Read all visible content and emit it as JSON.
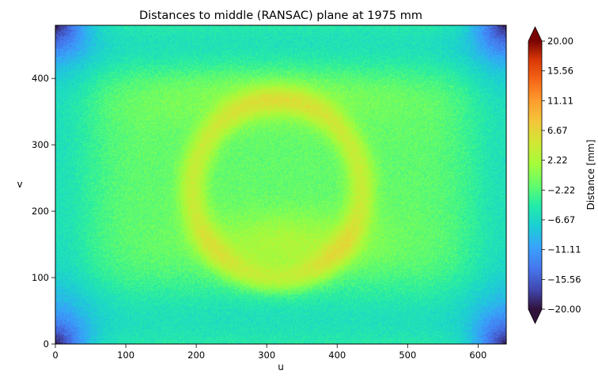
{
  "chart_data": {
    "type": "heatmap",
    "title": "Distances to middle (RANSAC) plane at 1975 mm",
    "xlabel": "u",
    "ylabel": "v",
    "xlim": [
      0,
      640
    ],
    "ylim": [
      0,
      480
    ],
    "x_ticks": [
      0,
      100,
      200,
      300,
      400,
      500,
      600
    ],
    "y_ticks": [
      0,
      100,
      200,
      300,
      400
    ],
    "colorbar": {
      "label": "Distance [mm]",
      "min": -20,
      "max": 20,
      "extend": "both",
      "colormap": "turbo",
      "ticks": [
        "20.00",
        "15.56",
        "11.11",
        "6.67",
        "2.22",
        "−2.22",
        "−6.67",
        "−11.11",
        "−15.56",
        "−20.00"
      ]
    },
    "field": {
      "base_value": -1.5,
      "features": [
        {
          "kind": "ring",
          "cx": 315,
          "cy": 232,
          "rx": 120,
          "ry": 135,
          "width": 14,
          "value": 5.5
        },
        {
          "kind": "blob",
          "cx": 330,
          "cy": 150,
          "rx": 120,
          "ry": 45,
          "value": 4.0
        },
        {
          "kind": "blob",
          "cx": 300,
          "cy": 380,
          "rx": 200,
          "ry": 45,
          "value": 2.5
        },
        {
          "kind": "band",
          "cy": 450,
          "width": 40,
          "value": -7.0
        },
        {
          "kind": "band",
          "cy": 35,
          "width": 45,
          "value": -7.0
        },
        {
          "kind": "edge",
          "side": "left",
          "width": 45,
          "value": -6.0
        },
        {
          "kind": "edge",
          "side": "right",
          "width": 45,
          "value": -6.0
        },
        {
          "kind": "corners",
          "radius": 80,
          "value": -20.0
        }
      ]
    }
  }
}
